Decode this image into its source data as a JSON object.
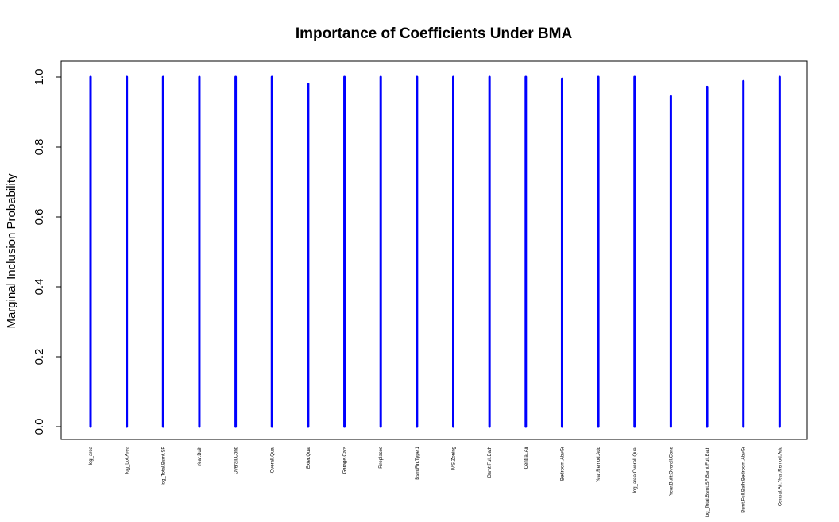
{
  "chart_data": {
    "type": "bar",
    "title": "Importance of Coefficients Under BMA",
    "xlabel": "",
    "ylabel": "Marginal Inclusion Probability",
    "ylim": [
      0,
      1
    ],
    "yticks": [
      "0.0",
      "0.2",
      "0.4",
      "0.6",
      "0.8",
      "1.0"
    ],
    "grid": false,
    "legend": "none",
    "bar_color": "#0000FF",
    "categories": [
      "log_area",
      "log_Lot.Area",
      "log_Total.Bsmt.SF",
      "Year.Built",
      "Overall.Cond",
      "Overall.Qual",
      "Exter.Qual",
      "Garage.Cars",
      "Fireplaces",
      "BsmtFin.Type.1",
      "MS.Zoning",
      "Bsmt.Full.Bath",
      "Central.Air",
      "Bedroom.AbvGr",
      "Year.Remod.Add",
      "log_area:Overall.Qual",
      "Year.Built:Overall.Cond",
      "log_Total.Bsmt.SF:Bsmt.Full.Bath",
      "Bsmt.Full.Bath:Bedroom.AbvGr",
      "Central.Air:Year.Remod.Add"
    ],
    "values": [
      1.0,
      1.0,
      1.0,
      1.0,
      1.0,
      1.0,
      0.98,
      1.0,
      1.0,
      1.0,
      1.0,
      1.0,
      1.0,
      0.995,
      1.0,
      1.0,
      0.945,
      0.972,
      0.988,
      1.0
    ]
  }
}
